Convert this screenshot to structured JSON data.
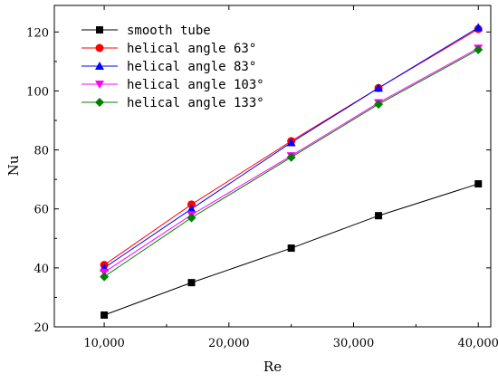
{
  "chart_data": {
    "type": "line",
    "xlabel": "Re",
    "ylabel": "Nu",
    "xlim": [
      6000,
      41000
    ],
    "ylim": [
      20,
      129
    ],
    "x_ticks": [
      10000,
      20000,
      30000,
      40000
    ],
    "x_tick_labels": [
      "10,000",
      "20,000",
      "30,000",
      "40,000"
    ],
    "y_ticks": [
      20,
      40,
      60,
      80,
      100,
      120
    ],
    "y_tick_labels": [
      "20",
      "40",
      "60",
      "80",
      "100",
      "120"
    ],
    "grid": false,
    "legend_position": "top-left",
    "x": [
      10000,
      17000,
      25000,
      32000,
      40000
    ],
    "series": [
      {
        "name": "smooth tube",
        "values": [
          24,
          35,
          46.7,
          57.7,
          68.5
        ],
        "color": "#000000",
        "marker": "square"
      },
      {
        "name": "helical angle 63°",
        "values": [
          41,
          61.5,
          83,
          101,
          121
        ],
        "color": "#ff0000",
        "marker": "circle"
      },
      {
        "name": "helical angle 83°",
        "values": [
          40,
          60,
          82.5,
          101,
          121.5
        ],
        "color": "#0000ff",
        "marker": "triangle-up"
      },
      {
        "name": "helical angle 103°",
        "values": [
          38.5,
          58,
          78,
          96,
          114.5
        ],
        "color": "#ff00ff",
        "marker": "triangle-down"
      },
      {
        "name": "helical angle 133°",
        "values": [
          37,
          57,
          77.5,
          95.5,
          114
        ],
        "color": "#008000",
        "marker": "diamond"
      }
    ]
  }
}
